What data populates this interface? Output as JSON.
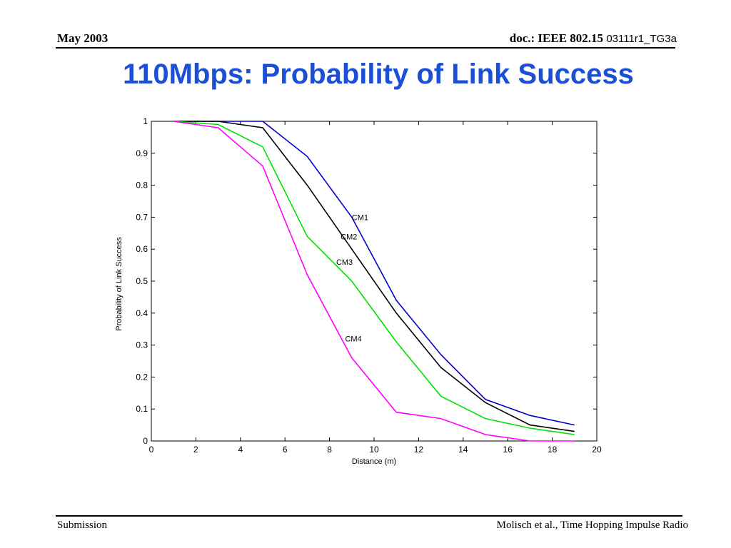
{
  "header": {
    "date": "May 2003",
    "doc_prefix": "doc.: IEEE 802.15",
    "doc_number": "03111r1_TG3a"
  },
  "slide": {
    "title": "110Mbps: Probability of Link Success"
  },
  "footer": {
    "left": "Submission",
    "right": "Molisch et al., Time  Hopping Impulse Radio"
  },
  "chart_data": {
    "type": "line",
    "title": "",
    "xlabel": "Distance (m)",
    "ylabel": "Probability of Link Success",
    "xlim": [
      0,
      20
    ],
    "ylim": [
      0,
      1
    ],
    "xticks": [
      0,
      2,
      4,
      6,
      8,
      10,
      12,
      14,
      16,
      18,
      20
    ],
    "yticks": [
      0,
      0.1,
      0.2,
      0.3,
      0.4,
      0.5,
      0.6,
      0.7,
      0.8,
      0.9,
      1
    ],
    "grid": false,
    "x": [
      1,
      3,
      5,
      7,
      9,
      11,
      13,
      15,
      17,
      19
    ],
    "series": [
      {
        "name": "CM1",
        "color": "#0000cc",
        "values": [
          1,
          1,
          1,
          0.89,
          0.7,
          0.44,
          0.27,
          0.13,
          0.08,
          0.05
        ],
        "label_at": [
          9,
          0.7
        ]
      },
      {
        "name": "CM2",
        "color": "#000000",
        "values": [
          1,
          1,
          0.98,
          0.8,
          0.6,
          0.4,
          0.23,
          0.12,
          0.05,
          0.03
        ],
        "label_at": [
          8.5,
          0.64
        ]
      },
      {
        "name": "CM3",
        "color": "#00e000",
        "values": [
          1,
          0.99,
          0.92,
          0.64,
          0.5,
          0.31,
          0.14,
          0.07,
          0.04,
          0.02
        ],
        "label_at": [
          8.3,
          0.56
        ]
      },
      {
        "name": "CM4",
        "color": "#ff00ff",
        "values": [
          1,
          0.98,
          0.86,
          0.52,
          0.26,
          0.09,
          0.07,
          0.02,
          0.0,
          0.0
        ],
        "label_at": [
          8.7,
          0.32
        ]
      }
    ]
  }
}
